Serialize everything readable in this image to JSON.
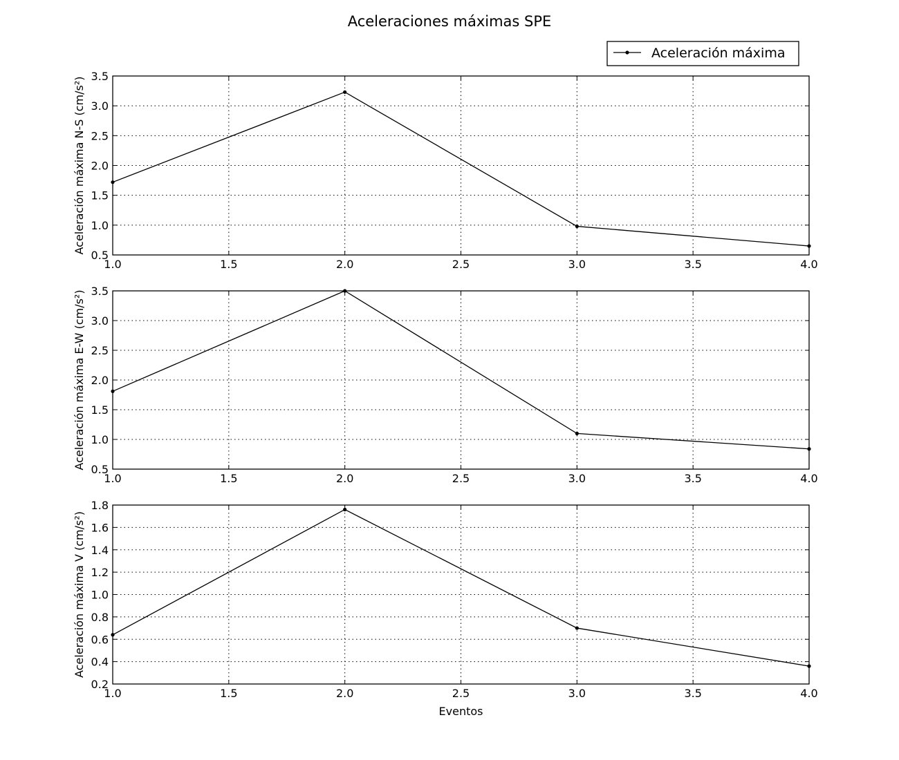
{
  "figure": {
    "title": "Aceleraciones máximas SPE",
    "legend": {
      "label": "Aceleración máxima",
      "placement": "top-right"
    }
  },
  "chart_data": [
    {
      "type": "line",
      "x": [
        1.0,
        2.0,
        3.0,
        4.0
      ],
      "series": [
        {
          "name": "Aceleración máxima",
          "values": [
            1.72,
            3.23,
            0.98,
            0.65
          ]
        }
      ],
      "xlabel": "",
      "ylabel": "Aceleración máxima N-S (cm/s²)",
      "xlim": [
        1.0,
        4.0
      ],
      "ylim": [
        0.5,
        3.5
      ],
      "xticks": [
        "1.0",
        "1.5",
        "2.0",
        "2.5",
        "3.0",
        "3.5",
        "4.0"
      ],
      "yticks": [
        "0.5",
        "1.0",
        "1.5",
        "2.0",
        "2.5",
        "3.0",
        "3.5"
      ],
      "grid": true,
      "color": "#000000",
      "marker": "point"
    },
    {
      "type": "line",
      "x": [
        1.0,
        2.0,
        3.0,
        4.0
      ],
      "series": [
        {
          "name": "Aceleración máxima",
          "values": [
            1.81,
            3.5,
            1.1,
            0.84
          ]
        }
      ],
      "xlabel": "",
      "ylabel": "Aceleración máxima E-W (cm/s²)",
      "xlim": [
        1.0,
        4.0
      ],
      "ylim": [
        0.5,
        3.5
      ],
      "xticks": [
        "1.0",
        "1.5",
        "2.0",
        "2.5",
        "3.0",
        "3.5",
        "4.0"
      ],
      "yticks": [
        "0.5",
        "1.0",
        "1.5",
        "2.0",
        "2.5",
        "3.0",
        "3.5"
      ],
      "grid": true,
      "color": "#000000",
      "marker": "point"
    },
    {
      "type": "line",
      "x": [
        1.0,
        2.0,
        3.0,
        4.0
      ],
      "series": [
        {
          "name": "Aceleración máxima",
          "values": [
            0.64,
            1.76,
            0.7,
            0.36
          ]
        }
      ],
      "xlabel": "Eventos",
      "ylabel": "Aceleración máxima V (cm/s²)",
      "xlim": [
        1.0,
        4.0
      ],
      "ylim": [
        0.2,
        1.8
      ],
      "xticks": [
        "1.0",
        "1.5",
        "2.0",
        "2.5",
        "3.0",
        "3.5",
        "4.0"
      ],
      "yticks": [
        "0.2",
        "0.4",
        "0.6",
        "0.8",
        "1.0",
        "1.2",
        "1.4",
        "1.6",
        "1.8"
      ],
      "grid": true,
      "color": "#000000",
      "marker": "point"
    }
  ]
}
